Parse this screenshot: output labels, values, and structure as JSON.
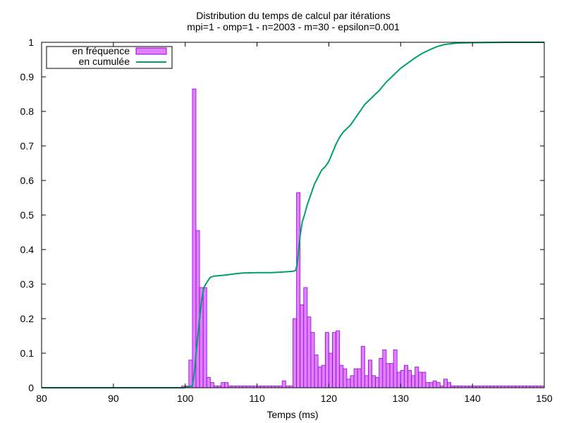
{
  "chart_data": {
    "type": "bar",
    "title": "Distribution du temps de calcul par itérations",
    "subtitle": "mpi=1 - omp=1 - n=2003 - m=30 - epsilon=0.001",
    "xlabel": "Temps (ms)",
    "ylabel": "",
    "xlim": [
      80,
      150
    ],
    "ylim": [
      0,
      1
    ],
    "xticks": [
      "80",
      "90",
      "100",
      "110",
      "120",
      "130",
      "140",
      "150"
    ],
    "yticks": [
      "0",
      "0.1",
      "0.2",
      "0.3",
      "0.4",
      "0.5",
      "0.6",
      "0.7",
      "0.8",
      "0.9",
      "1"
    ],
    "grid": false,
    "legend_position": "top-left",
    "bin_width": 0.5,
    "series": [
      {
        "name": "en fréquence",
        "kind": "histogram",
        "color": "#e080ff",
        "edge_color": "#9400d3",
        "x": [
          99.5,
          100,
          100.5,
          101,
          101.5,
          102,
          102.5,
          103,
          103.5,
          104,
          104.5,
          105,
          105.5,
          106,
          106.5,
          107,
          107.5,
          108,
          108.5,
          109,
          109.5,
          110,
          110.5,
          111,
          111.5,
          112,
          112.5,
          113,
          113.5,
          114,
          114.5,
          115,
          115.5,
          116,
          116.5,
          117,
          117.5,
          118,
          118.5,
          119,
          119.5,
          120,
          120.5,
          121,
          121.5,
          122,
          122.5,
          123,
          123.5,
          124,
          124.5,
          125,
          125.5,
          126,
          126.5,
          127,
          127.5,
          128,
          128.5,
          129,
          129.5,
          130,
          130.5,
          131,
          131.5,
          132,
          132.5,
          133,
          133.5,
          134,
          134.5,
          135,
          135.5,
          136,
          136.5,
          137,
          137.5,
          138,
          138.5,
          139,
          139.5,
          140,
          140.5,
          141,
          141.5,
          142,
          142.5,
          143,
          143.5,
          144,
          144.5,
          145,
          145.5,
          146,
          146.5,
          147,
          147.5,
          148,
          148.5,
          149,
          149.5
        ],
        "values": [
          0.005,
          0.005,
          0.08,
          0.865,
          0.455,
          0.29,
          0.29,
          0.03,
          0.015,
          0.005,
          0.005,
          0.015,
          0.015,
          0.005,
          0.005,
          0.005,
          0.005,
          0.005,
          0.005,
          0.005,
          0.005,
          0.005,
          0.005,
          0.005,
          0.005,
          0.005,
          0.005,
          0.005,
          0.02,
          0.005,
          0.005,
          0.2,
          0.565,
          0.24,
          0.29,
          0.205,
          0.16,
          0.095,
          0.06,
          0.065,
          0.16,
          0.1,
          0.16,
          0.165,
          0.065,
          0.055,
          0.025,
          0.035,
          0.055,
          0.055,
          0.12,
          0.035,
          0.08,
          0.035,
          0.03,
          0.085,
          0.11,
          0.07,
          0.07,
          0.11,
          0.045,
          0.05,
          0.065,
          0.05,
          0.035,
          0.06,
          0.045,
          0.045,
          0.015,
          0.015,
          0.02,
          0.015,
          0.005,
          0.025,
          0.015,
          0.005,
          0.005,
          0.005,
          0.005,
          0.005,
          0.005,
          0.005,
          0.005,
          0.005,
          0.005,
          0.005,
          0.005,
          0.005,
          0.005,
          0.005,
          0.005,
          0.005,
          0.005,
          0.005,
          0.005,
          0.005,
          0.005,
          0.005,
          0.005,
          0.005,
          0.005
        ]
      },
      {
        "name": "en cumulée",
        "kind": "step-line",
        "color": "#009e73",
        "x": [
          80,
          99.8,
          100.5,
          101,
          101.3,
          101.6,
          102,
          102.3,
          102.6,
          103,
          103.5,
          104,
          105,
          106,
          107,
          108,
          110,
          112,
          113.5,
          115,
          115.4,
          115.6,
          115.8,
          116,
          116.3,
          116.6,
          117,
          117.5,
          118,
          118.5,
          119,
          119.5,
          120,
          120.5,
          121,
          121.5,
          122,
          123,
          124,
          125,
          126,
          127,
          128,
          129,
          130,
          131,
          132,
          133,
          134,
          135,
          136,
          137,
          138,
          140,
          145,
          150
        ],
        "y": [
          0,
          0,
          0.003,
          0.006,
          0.05,
          0.12,
          0.2,
          0.255,
          0.29,
          0.305,
          0.32,
          0.323,
          0.325,
          0.327,
          0.33,
          0.332,
          0.333,
          0.333,
          0.335,
          0.337,
          0.34,
          0.36,
          0.4,
          0.44,
          0.48,
          0.5,
          0.53,
          0.56,
          0.59,
          0.61,
          0.63,
          0.64,
          0.655,
          0.68,
          0.705,
          0.725,
          0.74,
          0.76,
          0.79,
          0.82,
          0.84,
          0.86,
          0.885,
          0.905,
          0.925,
          0.94,
          0.955,
          0.968,
          0.978,
          0.987,
          0.993,
          0.996,
          0.998,
          0.999,
          1.0,
          1.0
        ]
      }
    ]
  }
}
